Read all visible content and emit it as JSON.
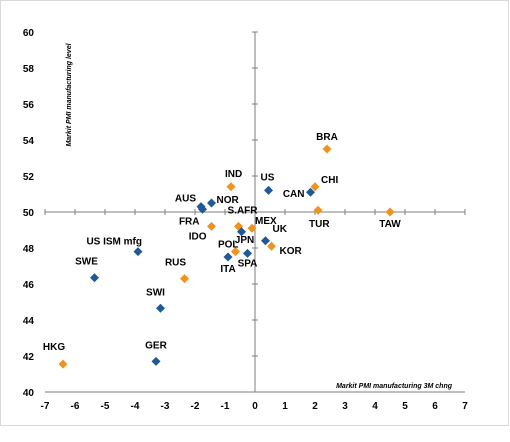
{
  "chart_data": {
    "type": "scatter",
    "title": "",
    "xlabel": "Markit PMI manufacturing 3M chng",
    "ylabel": "Markit PMI manufacturing level",
    "xlim": [
      -7,
      7
    ],
    "ylim": [
      40,
      60
    ],
    "x_ticks": [
      -7,
      -6,
      -5,
      -4,
      -3,
      -2,
      -1,
      0,
      1,
      2,
      3,
      4,
      5,
      6,
      7
    ],
    "y_ticks": [
      40,
      42,
      44,
      46,
      48,
      50,
      52,
      54,
      56,
      58,
      60
    ],
    "grid": false,
    "legend": "none",
    "colors": {
      "blue": "#1f5a96",
      "orange": "#f0921e"
    },
    "points": [
      {
        "label": "BRA",
        "x": 2.4,
        "y": 53.5,
        "color": "orange"
      },
      {
        "label": "CHI",
        "x": 2.0,
        "y": 51.4,
        "color": "orange"
      },
      {
        "label": "CAN",
        "x": 1.85,
        "y": 51.1,
        "color": "blue"
      },
      {
        "label": "TUR",
        "x": 2.1,
        "y": 50.1,
        "color": "orange"
      },
      {
        "label": "TAW",
        "x": 4.5,
        "y": 50.0,
        "color": "orange"
      },
      {
        "label": "US",
        "x": 0.45,
        "y": 51.2,
        "color": "blue"
      },
      {
        "label": "IND",
        "x": -0.8,
        "y": 51.4,
        "color": "orange"
      },
      {
        "label": "AUS",
        "x": -1.8,
        "y": 50.3,
        "color": "blue"
      },
      {
        "label": "NOR",
        "x": -1.45,
        "y": 50.5,
        "color": "blue"
      },
      {
        "label": "FRA",
        "x": -1.75,
        "y": 50.15,
        "color": "blue"
      },
      {
        "label": "S.AFR",
        "x": -0.55,
        "y": 49.2,
        "color": "orange"
      },
      {
        "label": "MEX",
        "x": -0.1,
        "y": 49.1,
        "color": "orange"
      },
      {
        "label": "IDO",
        "x": -1.45,
        "y": 49.2,
        "color": "orange"
      },
      {
        "label": "UK",
        "x": 0.35,
        "y": 48.4,
        "color": "blue"
      },
      {
        "label": "JPN",
        "x": -0.45,
        "y": 48.9,
        "color": "blue"
      },
      {
        "label": "KOR",
        "x": 0.55,
        "y": 48.1,
        "color": "orange"
      },
      {
        "label": "POL",
        "x": -0.65,
        "y": 47.8,
        "color": "orange"
      },
      {
        "label": "ITA",
        "x": -0.9,
        "y": 47.5,
        "color": "blue"
      },
      {
        "label": "SPA",
        "x": -0.25,
        "y": 47.7,
        "color": "blue"
      },
      {
        "label": "US ISM mfg",
        "x": -3.9,
        "y": 47.8,
        "color": "blue"
      },
      {
        "label": "RUS",
        "x": -2.35,
        "y": 46.3,
        "color": "orange"
      },
      {
        "label": "SWE",
        "x": -5.35,
        "y": 46.35,
        "color": "blue"
      },
      {
        "label": "SWI",
        "x": -3.15,
        "y": 44.65,
        "color": "blue"
      },
      {
        "label": "GER",
        "x": -3.3,
        "y": 41.7,
        "color": "blue"
      },
      {
        "label": "HKG",
        "x": -6.4,
        "y": 41.55,
        "color": "orange"
      }
    ]
  }
}
